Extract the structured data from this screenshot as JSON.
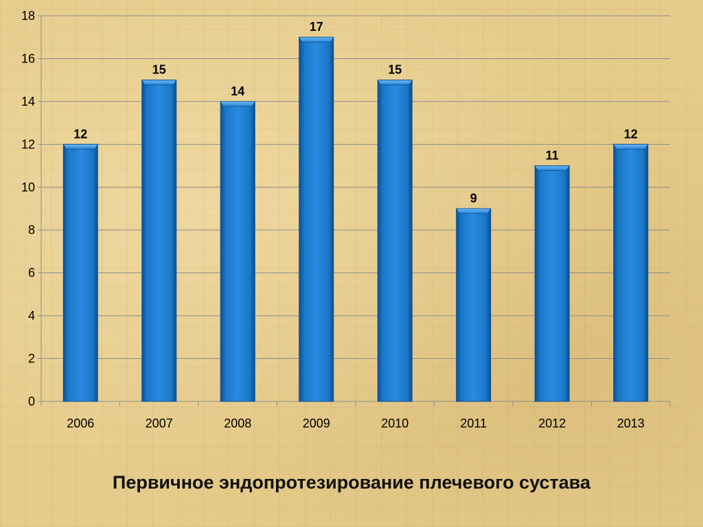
{
  "chart_data": {
    "type": "bar",
    "title": "Первичное эндопротезирование плечевого сустава",
    "categories": [
      "2006",
      "2007",
      "2008",
      "2009",
      "2010",
      "2011",
      "2012",
      "2013"
    ],
    "series": [
      {
        "values": [
          12,
          15,
          14,
          17,
          15,
          9,
          11,
          12
        ]
      }
    ],
    "ylim": [
      0,
      18
    ],
    "yticks": [
      0,
      2,
      4,
      6,
      8,
      10,
      12,
      14,
      16,
      18
    ],
    "xlabel": "",
    "ylabel": "",
    "grid": "horizontal",
    "legend": "none",
    "data_labels": true
  },
  "colors": {
    "bar": "#1a78c8",
    "bar_dark": "#0b4f96",
    "bar_top": "#3f9ae4",
    "gridline": "#8c8c8c"
  }
}
